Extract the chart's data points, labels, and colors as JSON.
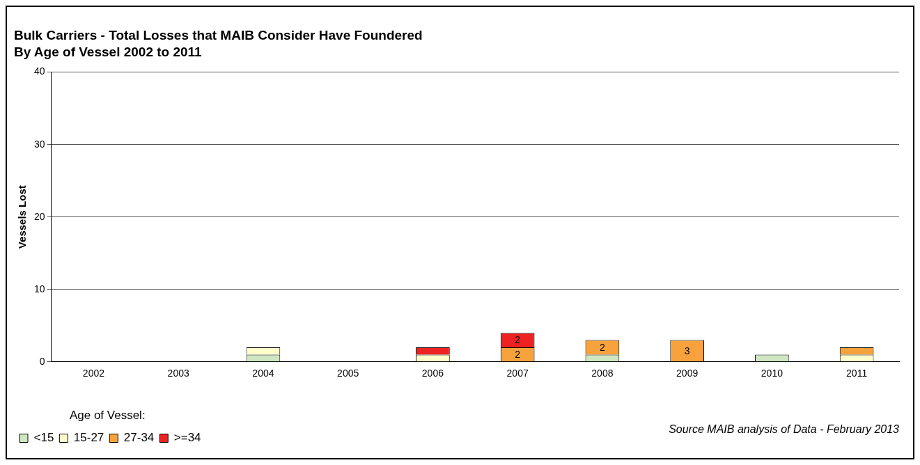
{
  "chart_data": {
    "type": "bar",
    "title": "Bulk Carriers - Total Losses that MAIB Consider Have Foundered",
    "subtitle": "By Age of Vessel 2002 to 2011",
    "ylabel": "Vessels Lost",
    "legend_title": "Age of Vessel:",
    "annotations": [
      "Source MAIB analysis of Data - February 2013"
    ],
    "categories": [
      "2002",
      "2003",
      "2004",
      "2005",
      "2006",
      "2007",
      "2008",
      "2009",
      "2010",
      "2011"
    ],
    "stacked": true,
    "ylim": [
      0,
      40
    ],
    "yticks": [
      0,
      10,
      20,
      30,
      40
    ],
    "grid": "y",
    "legend": "bottom left",
    "series": [
      {
        "name": "<15",
        "color": "#cfe6c2",
        "values": [
          0,
          0,
          1,
          0,
          0,
          0,
          1,
          0,
          1,
          0
        ],
        "value_labels": [
          null,
          null,
          null,
          null,
          null,
          null,
          null,
          null,
          null,
          null
        ]
      },
      {
        "name": "15-27",
        "color": "#ffffcc",
        "values": [
          0,
          0,
          1,
          0,
          1,
          0,
          0,
          0,
          0,
          1
        ],
        "value_labels": [
          null,
          null,
          null,
          null,
          null,
          null,
          null,
          null,
          null,
          null
        ]
      },
      {
        "name": "27-34",
        "color": "#f7a23c",
        "values": [
          0,
          0,
          0,
          0,
          0,
          2,
          2,
          3,
          0,
          1
        ],
        "value_labels": [
          null,
          null,
          null,
          null,
          null,
          "2",
          "2",
          "3",
          null,
          null
        ]
      },
      {
        "name": ">=34",
        "color": "#ee2222",
        "values": [
          0,
          0,
          0,
          0,
          1,
          2,
          0,
          0,
          0,
          0
        ],
        "value_labels": [
          null,
          null,
          null,
          null,
          null,
          "2",
          null,
          null,
          null,
          null
        ]
      }
    ]
  }
}
